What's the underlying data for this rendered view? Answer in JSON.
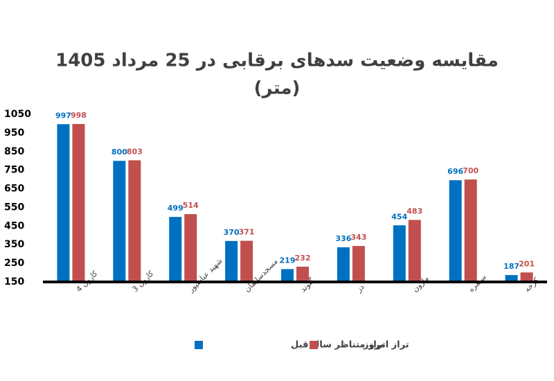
{
  "chart_data": {
    "type": "bar",
    "title": "مقایسه وضعیت سدهای برقابی در 25 مرداد 1405",
    "subtitle": "(متر)",
    "categories": [
      "کارون 4",
      "کارون 3",
      "شهید عباسپور",
      "مسجدسلیمان",
      "گتوند",
      "دز",
      "مارون",
      "سیمره",
      "کرخه"
    ],
    "series": [
      {
        "name": "تراز متناظر سال قبل",
        "color": "#0070c0",
        "values": [
          997,
          800,
          499,
          370,
          219,
          336,
          454,
          696,
          187
        ]
      },
      {
        "name": "تراز امروز",
        "color": "#c0504d",
        "values": [
          998,
          803,
          514,
          371,
          232,
          343,
          483,
          700,
          201
        ]
      }
    ],
    "ylim": [
      150,
      1050
    ],
    "yticks": [
      150,
      250,
      350,
      450,
      550,
      650,
      750,
      850,
      950,
      1050
    ],
    "grid": false,
    "legend": "bottom"
  }
}
